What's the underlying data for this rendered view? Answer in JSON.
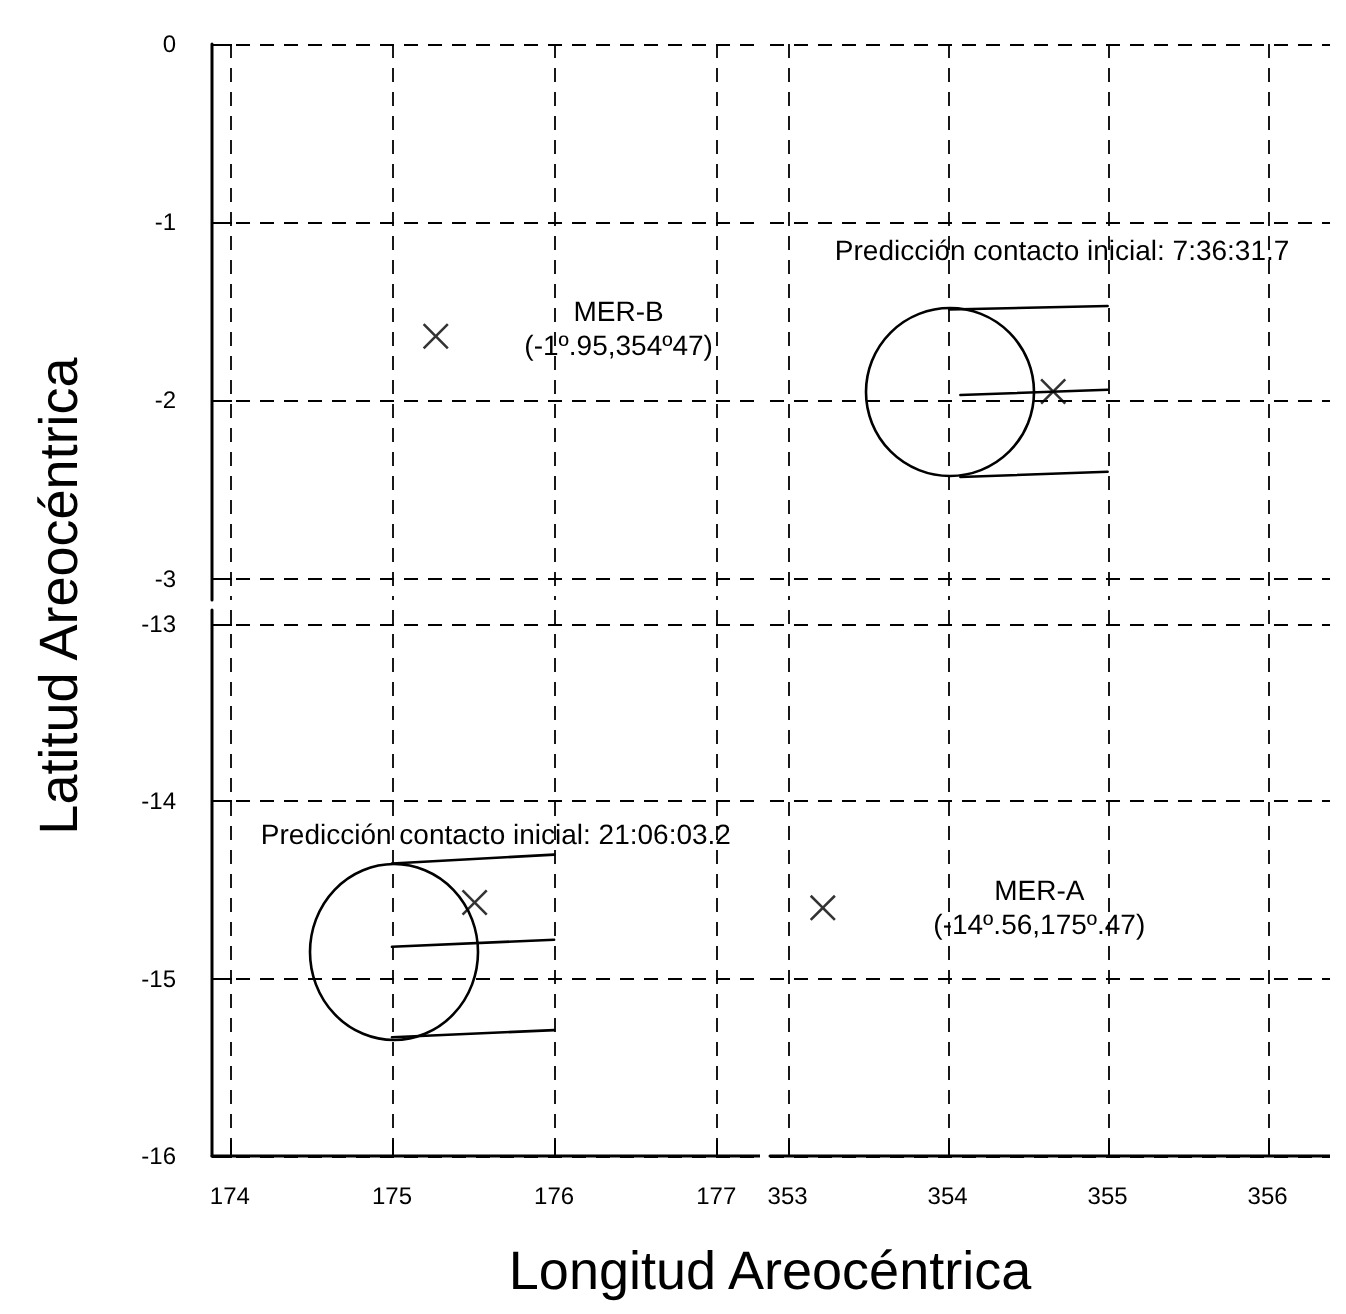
{
  "chart_data": [
    {
      "type": "scatter",
      "ylabel": "Latitud Areocéntrica",
      "xlim": [
        173.89,
        177.27
      ],
      "ylim": [
        -3.12,
        0
      ],
      "xticks": [
        174,
        175,
        176,
        177
      ],
      "yticks": [
        0,
        -1,
        -2,
        -3
      ],
      "tick_labels": "y",
      "grid": true,
      "annotations": [
        "MER-B\n(-1º.95,354º47)"
      ],
      "series": [
        {
          "marker": "cross",
          "color": "#000000",
          "x": [
            175.27
          ],
          "values": [
            -1.64
          ]
        }
      ]
    },
    {
      "type": "scatter",
      "xlim": [
        352.89,
        356.39
      ],
      "ylim": [
        -3.12,
        0
      ],
      "xticks": [
        353,
        354,
        355,
        356
      ],
      "yticks": [
        0,
        -1,
        -2,
        -3
      ],
      "tick_labels": false,
      "grid": true,
      "annotations": [
        "Predicción contacto inicial: 7:36:31.7"
      ],
      "series": [
        {
          "type": "line",
          "marker": "none",
          "color": "#000000",
          "x": [
            354.01,
            355.0
          ],
          "values": [
            -1.49,
            -1.47
          ]
        },
        {
          "type": "line",
          "marker": "none",
          "color": "#000000",
          "x": [
            354.08,
            355.0
          ],
          "values": [
            -1.97,
            -1.94
          ]
        },
        {
          "type": "line",
          "marker": "none",
          "color": "#000000",
          "x": [
            354.08,
            355.0
          ],
          "values": [
            -2.43,
            -2.4
          ]
        },
        {
          "marker": "cross",
          "color": "#000000",
          "x": [
            354.66
          ],
          "values": [
            -1.95
          ]
        }
      ]
    },
    {
      "type": "scatter",
      "xlim": [
        173.89,
        177.27
      ],
      "ylim": [
        -16,
        -12.92
      ],
      "xticks": [
        174,
        175,
        176,
        177
      ],
      "yticks": [
        -13,
        -14,
        -15,
        -16
      ],
      "grid": true,
      "annotations": [
        "Predicción contacto inicial: 21:06:03.2"
      ],
      "series": [
        {
          "type": "line",
          "marker": "none",
          "color": "#000000",
          "x": [
            175.0,
            176.0
          ],
          "values": [
            -14.35,
            -14.3
          ]
        },
        {
          "type": "line",
          "marker": "none",
          "color": "#000000",
          "x": [
            175.0,
            176.0
          ],
          "values": [
            -14.82,
            -14.78
          ]
        },
        {
          "type": "line",
          "marker": "none",
          "color": "#000000",
          "x": [
            175.0,
            176.0
          ],
          "values": [
            -15.33,
            -15.29
          ]
        },
        {
          "marker": "cross",
          "color": "#000000",
          "x": [
            175.51
          ],
          "values": [
            -14.57
          ]
        }
      ]
    },
    {
      "type": "scatter",
      "xlabel": "Longitud Areocéntrica",
      "xlim": [
        352.89,
        356.39
      ],
      "ylim": [
        -16,
        -12.92
      ],
      "xticks": [
        353,
        354,
        355,
        356
      ],
      "yticks": [
        -13,
        -14,
        -15,
        -16
      ],
      "tick_labels": "x",
      "grid": true,
      "annotations": [
        "MER-A\n(-14º.56,175º.47)"
      ],
      "series": [
        {
          "marker": "cross",
          "color": "#000000",
          "x": [
            353.22
          ],
          "values": [
            -14.6
          ]
        }
      ]
    }
  ]
}
